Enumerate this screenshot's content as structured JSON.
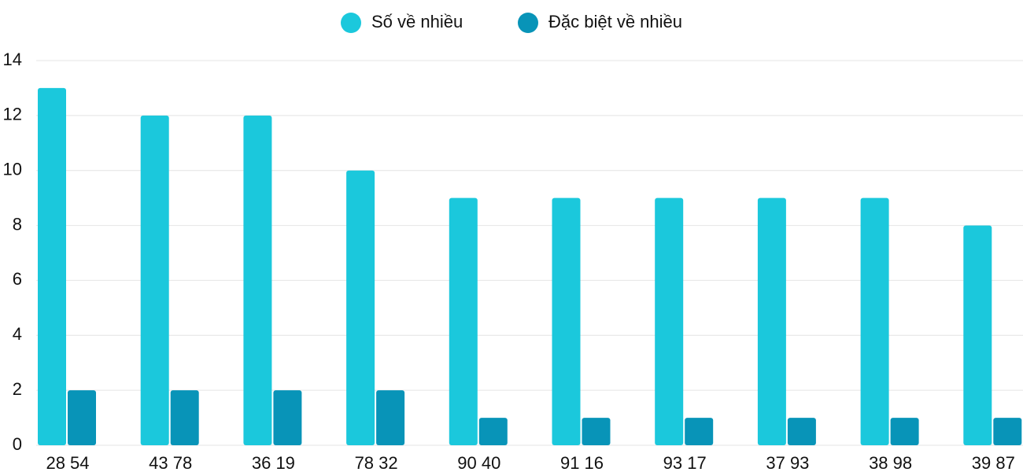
{
  "chart_data": {
    "type": "bar",
    "categories": [
      "28 54",
      "43 78",
      "36 19",
      "78 32",
      "90 40",
      "91 16",
      "93 17",
      "37 93",
      "38 98",
      "39 87"
    ],
    "series": [
      {
        "name": "Số về nhiều",
        "color": "#1bc8dc",
        "values": [
          13,
          12,
          12,
          10,
          9,
          9,
          9,
          9,
          9,
          8
        ]
      },
      {
        "name": "Đặc biệt về nhiều",
        "color": "#0894b8",
        "values": [
          2,
          2,
          2,
          2,
          1,
          1,
          1,
          1,
          1,
          1
        ]
      }
    ],
    "ylim": [
      0,
      14
    ],
    "yticks": [
      0,
      2,
      4,
      6,
      8,
      10,
      12,
      14
    ],
    "grid": true,
    "legend": "top"
  }
}
